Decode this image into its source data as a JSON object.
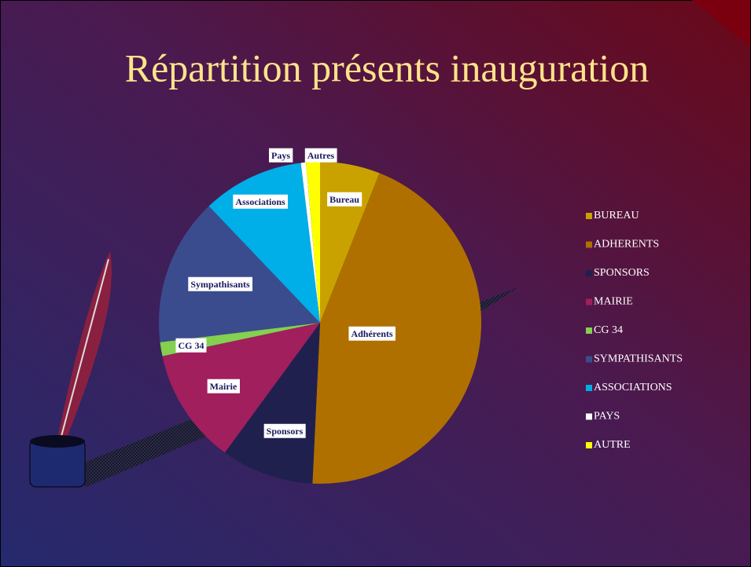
{
  "chart_data": {
    "type": "pie",
    "title": "Répartition présents inauguration",
    "categories": [
      "BUREAU",
      "ADHERENTS",
      "SPONSORS",
      "MAIRIE",
      "CG 34",
      "SYMPATHISANTS",
      "ASSOCIATIONS",
      "PAYS",
      "AUTRE"
    ],
    "data_labels": [
      "Bureau",
      "Adhérents",
      "Sponsors",
      "Mairie",
      "CG 34",
      "Sympathisants",
      "Associations",
      "Pays",
      "Autres"
    ],
    "values": [
      6,
      44.7,
      9.3,
      11.6,
      1.4,
      14.8,
      10.2,
      0.5,
      1.4
    ],
    "colors": [
      "#c9a200",
      "#b07000",
      "#20204f",
      "#a01f5c",
      "#84d050",
      "#3b4c8e",
      "#00aee8",
      "#ffffff",
      "#ffff00"
    ],
    "legend": "right"
  }
}
